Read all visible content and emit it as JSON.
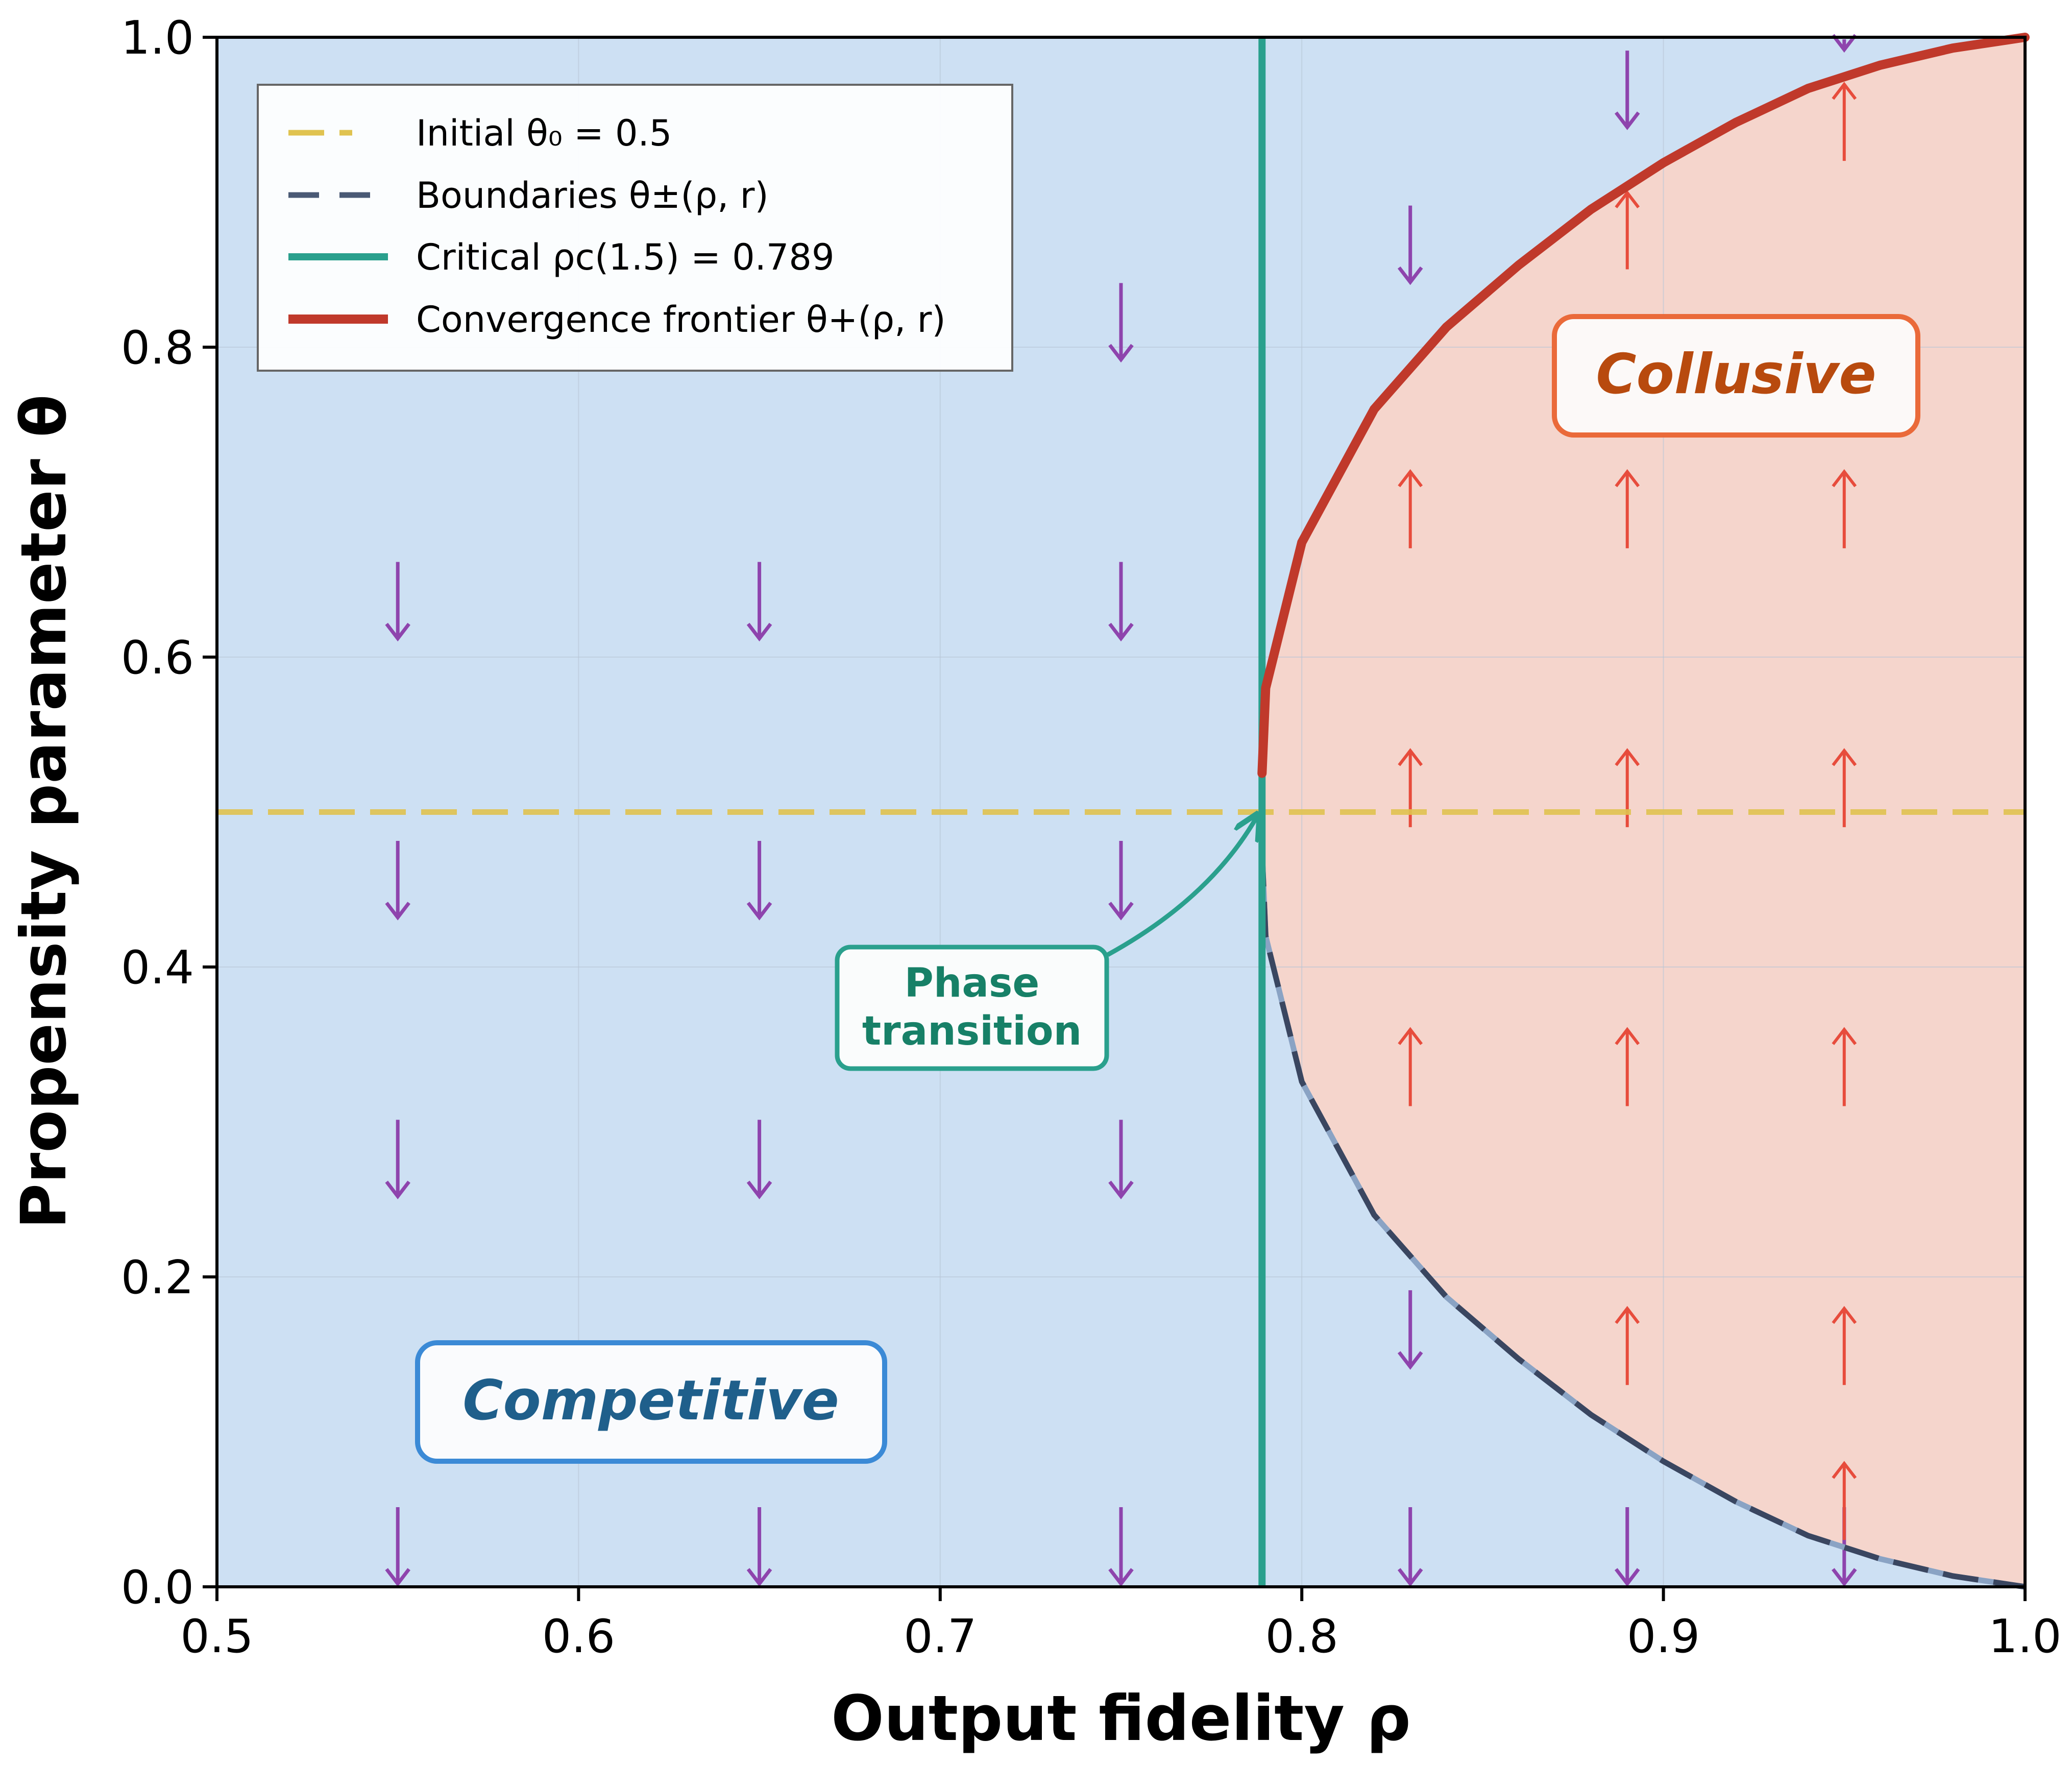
{
  "chart_data": {
    "type": "line",
    "xlabel": "Output fidelity ρ",
    "ylabel": "Propensity parameter θ",
    "xlim": [
      0.5,
      1.0
    ],
    "ylim": [
      0.0,
      1.0
    ],
    "x_ticks": [
      "0.5",
      "0.6",
      "0.7",
      "0.8",
      "0.9",
      "1.0"
    ],
    "y_ticks": [
      "0.0",
      "0.2",
      "0.4",
      "0.6",
      "0.8",
      "1.0"
    ],
    "grid": true,
    "legend_position": "upper-left",
    "legend": [
      {
        "label": "Initial θ₀ = 0.5",
        "style": "dashed",
        "color": "#e0c350"
      },
      {
        "label": "Boundaries θ±(ρ, r)",
        "style": "dashed",
        "color": "#4a5a75"
      },
      {
        "label": "Critical ρc(1.5) = 0.789",
        "style": "solid",
        "color": "#2aa08d"
      },
      {
        "label": "Convergence frontier θ+(ρ, r)",
        "style": "solid",
        "color": "#c0392b"
      }
    ],
    "initial_theta": 0.5,
    "critical_rho": 0.789,
    "frontier": {
      "rho": [
        0.789,
        0.79,
        0.8,
        0.82,
        0.84,
        0.86,
        0.88,
        0.9,
        0.92,
        0.94,
        0.96,
        0.98,
        1.0
      ],
      "upper": [
        0.525,
        0.58,
        0.674,
        0.76,
        0.813,
        0.853,
        0.889,
        0.919,
        0.945,
        0.967,
        0.982,
        0.993,
        1.0
      ],
      "lower": [
        0.475,
        0.42,
        0.326,
        0.24,
        0.187,
        0.147,
        0.111,
        0.081,
        0.055,
        0.033,
        0.018,
        0.007,
        0.0
      ]
    },
    "regions": [
      {
        "label": "Competitive",
        "color": "#cde0f3"
      },
      {
        "label": "Collusive",
        "color": "#f5d5cc"
      }
    ],
    "arrows": {
      "down_color": "#8e44ad",
      "up_color": "#e74c3c",
      "columns": [
        {
          "x": 0.55,
          "items": [
            [
              0.0,
              "down"
            ],
            [
              0.25,
              "down"
            ],
            [
              0.43,
              "down"
            ],
            [
              0.61,
              "down"
            ]
          ]
        },
        {
          "x": 0.65,
          "items": [
            [
              0.0,
              "down"
            ],
            [
              0.25,
              "down"
            ],
            [
              0.43,
              "down"
            ],
            [
              0.61,
              "down"
            ]
          ]
        },
        {
          "x": 0.75,
          "items": [
            [
              0.0,
              "down"
            ],
            [
              0.25,
              "down"
            ],
            [
              0.43,
              "down"
            ],
            [
              0.61,
              "down"
            ],
            [
              0.79,
              "down"
            ]
          ]
        },
        {
          "x": 0.83,
          "items": [
            [
              0.0,
              "down"
            ],
            [
              0.14,
              "down"
            ],
            [
              0.33,
              "up"
            ],
            [
              0.51,
              "up"
            ],
            [
              0.69,
              "up"
            ],
            [
              0.84,
              "down"
            ]
          ]
        },
        {
          "x": 0.89,
          "items": [
            [
              0.0,
              "down"
            ],
            [
              0.15,
              "up"
            ],
            [
              0.33,
              "up"
            ],
            [
              0.51,
              "up"
            ],
            [
              0.69,
              "up"
            ],
            [
              0.87,
              "up"
            ],
            [
              0.94,
              "down"
            ]
          ]
        },
        {
          "x": 0.95,
          "items": [
            [
              0.0,
              "down"
            ],
            [
              0.05,
              "up"
            ],
            [
              0.15,
              "up"
            ],
            [
              0.33,
              "up"
            ],
            [
              0.51,
              "up"
            ],
            [
              0.69,
              "up"
            ],
            [
              0.94,
              "up"
            ],
            [
              0.99,
              "down"
            ]
          ]
        }
      ]
    },
    "annotations": [
      {
        "text": "Phase transition",
        "lines": [
          "Phase",
          "transition"
        ],
        "points_to": [
          0.789,
          0.5
        ]
      }
    ]
  },
  "colors": {
    "competitive_fill": "#cde0f3",
    "collusive_fill": "#f5d5cc",
    "initial_line": "#e0c350",
    "boundary_line": "#4a5a75",
    "critical_line": "#2aa08d",
    "frontier_line": "#c0392b",
    "competitive_label": "#1f5f8b",
    "competitive_box": "#3b8ad6",
    "collusive_label": "#b84a0e",
    "collusive_box": "#ea6a3a"
  }
}
